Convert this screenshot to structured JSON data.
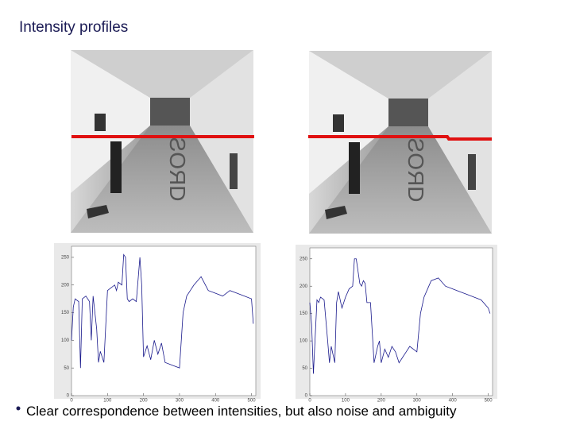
{
  "title": "Intensity profiles",
  "bullet": "Clear correspondence between intensities, but also noise and ambiguity",
  "plots": [
    {
      "type": "line",
      "color": "#1a1a8c",
      "x": [
        0,
        5,
        10,
        20,
        25,
        30,
        40,
        50,
        55,
        60,
        70,
        75,
        80,
        90,
        100,
        110,
        120,
        125,
        130,
        140,
        145,
        150,
        155,
        160,
        170,
        180,
        190,
        195,
        200,
        210,
        220,
        230,
        240,
        250,
        260,
        280,
        300,
        310,
        320,
        330,
        340,
        360,
        380,
        400,
        420,
        440,
        460,
        480,
        500,
        505
      ],
      "values": [
        100,
        160,
        175,
        170,
        50,
        175,
        180,
        170,
        100,
        180,
        120,
        60,
        80,
        60,
        190,
        195,
        200,
        190,
        205,
        200,
        255,
        250,
        175,
        170,
        175,
        170,
        250,
        200,
        70,
        90,
        65,
        100,
        75,
        95,
        60,
        55,
        50,
        150,
        180,
        190,
        200,
        215,
        190,
        185,
        180,
        190,
        185,
        180,
        175,
        130
      ],
      "xlim": [
        0,
        512
      ],
      "ylim": [
        0,
        270
      ],
      "xticks": [
        0,
        100,
        200,
        300,
        400,
        500
      ],
      "yticks": [
        0,
        50,
        100,
        150,
        200,
        250
      ]
    },
    {
      "type": "line",
      "color": "#1a1a8c",
      "x": [
        0,
        5,
        10,
        20,
        25,
        30,
        40,
        50,
        55,
        60,
        70,
        75,
        80,
        90,
        100,
        110,
        120,
        125,
        130,
        140,
        145,
        150,
        155,
        160,
        170,
        180,
        190,
        195,
        200,
        210,
        220,
        230,
        240,
        250,
        260,
        280,
        300,
        310,
        320,
        330,
        340,
        360,
        380,
        400,
        420,
        440,
        460,
        480,
        500,
        505
      ],
      "values": [
        170,
        130,
        40,
        175,
        170,
        180,
        175,
        100,
        60,
        90,
        60,
        170,
        190,
        160,
        180,
        195,
        200,
        250,
        250,
        205,
        200,
        210,
        205,
        170,
        170,
        60,
        90,
        100,
        60,
        85,
        70,
        90,
        80,
        60,
        70,
        90,
        80,
        150,
        180,
        195,
        210,
        215,
        200,
        195,
        190,
        185,
        180,
        175,
        160,
        150
      ],
      "xlim": [
        0,
        512
      ],
      "ylim": [
        0,
        270
      ],
      "xticks": [
        0,
        100,
        200,
        300,
        400,
        500
      ],
      "yticks": [
        0,
        50,
        100,
        150,
        200,
        250
      ]
    }
  ]
}
